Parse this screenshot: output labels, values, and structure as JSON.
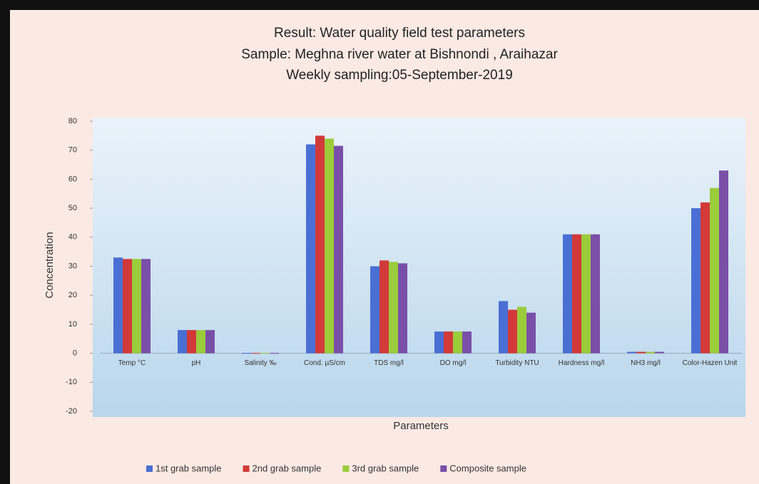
{
  "chart_data": {
    "type": "bar",
    "title": [
      "Result: Water quality field test parameters",
      "Sample: Meghna river water at Bishnondi , Araihazar",
      "Weekly sampling:05-September-2019"
    ],
    "xlabel": "Parameters",
    "ylabel": "Concentration",
    "categories": [
      "Temp °C",
      "pH",
      "Salinity ‰",
      "Cond. µS/cm",
      "TDS mg/l",
      "DO mg/l",
      "Turbidity NTU",
      "Hardness mg/l",
      "NH3 mg/l",
      "Color-Hazen Unit"
    ],
    "series": [
      {
        "name": "1st grab sample",
        "color": "#4a6fd4",
        "values": [
          33,
          8,
          0.1,
          72,
          30,
          7.5,
          18,
          41,
          0.5,
          50
        ]
      },
      {
        "name": "2nd grab sample",
        "color": "#d23a3a",
        "values": [
          32.5,
          8,
          0.1,
          75,
          32,
          7.5,
          15,
          41,
          0.5,
          52
        ]
      },
      {
        "name": "3rd grab sample",
        "color": "#9bcc3a",
        "values": [
          32.5,
          8,
          0.1,
          74,
          31.5,
          7.5,
          16,
          41,
          0.5,
          57
        ]
      },
      {
        "name": "Composite sample",
        "color": "#7a4fa8",
        "values": [
          32.5,
          8,
          0.1,
          71.5,
          31,
          7.5,
          14,
          41,
          0.5,
          63
        ]
      }
    ],
    "ylim": [
      -20,
      80
    ],
    "yticks": [
      -20,
      -10,
      0,
      10,
      20,
      30,
      40,
      50,
      60,
      70,
      80
    ],
    "legend": "bottom"
  }
}
